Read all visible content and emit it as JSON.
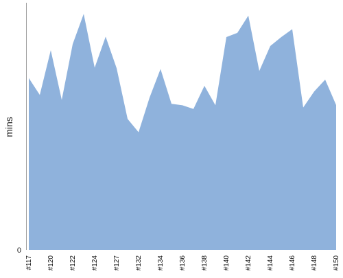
{
  "chart_data": {
    "type": "area",
    "title": "",
    "xlabel": "",
    "ylabel": "mins",
    "ylim": [
      0,
      100
    ],
    "y_ticks": [
      0
    ],
    "grid": false,
    "legend": "none",
    "fill_color": "#8fb2dc",
    "axis_color": "#a0a0a0",
    "x_tick_labels": [
      "#117",
      "#120",
      "#122",
      "#124",
      "#127",
      "#132",
      "#134",
      "#136",
      "#138",
      "#140",
      "#142",
      "#144",
      "#146",
      "#148",
      "#150"
    ],
    "x_tick_indices": [
      0,
      2,
      4,
      6,
      8,
      10,
      12,
      14,
      16,
      18,
      20,
      22,
      24,
      26,
      28
    ],
    "series": [
      {
        "values": [
          69.5,
          62.7,
          80.8,
          60.7,
          83.3,
          95.5,
          73.7,
          86.3,
          73.5,
          53.0,
          47.6,
          61.6,
          73.2,
          59.1,
          58.5,
          57.0,
          66.4,
          58.5,
          86.1,
          87.8,
          94.8,
          72.4,
          82.5,
          86.1,
          89.3,
          57.6,
          64.1,
          68.9,
          58.6
        ]
      }
    ]
  }
}
